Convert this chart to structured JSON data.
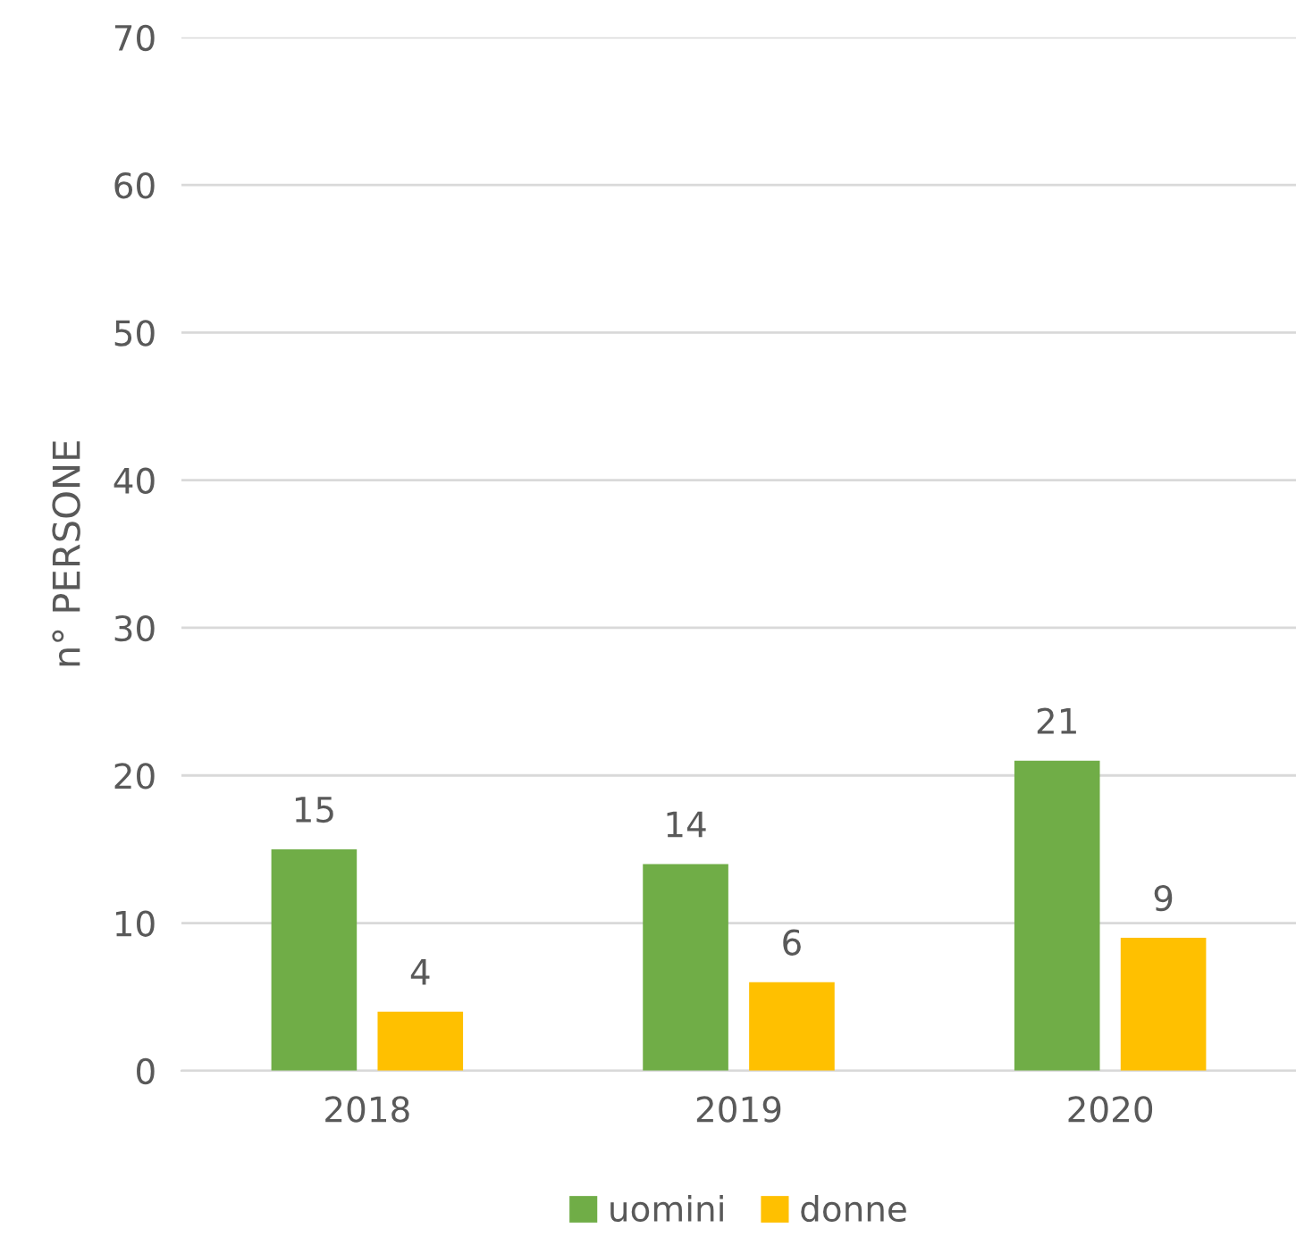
{
  "chart_data": {
    "type": "bar",
    "ylabel": "n° PERSONE",
    "categories": [
      "2018",
      "2019",
      "2020"
    ],
    "series": [
      {
        "name": "uomini",
        "color": "#70ad47",
        "values": [
          15,
          14,
          21
        ]
      },
      {
        "name": "donne",
        "color": "#ffc000",
        "values": [
          4,
          6,
          9
        ]
      }
    ],
    "ylim": [
      0,
      70
    ],
    "yticks": [
      0,
      10,
      20,
      30,
      40,
      50,
      60,
      70
    ],
    "grid": "y",
    "legend": "bottom",
    "data_labels": true
  }
}
